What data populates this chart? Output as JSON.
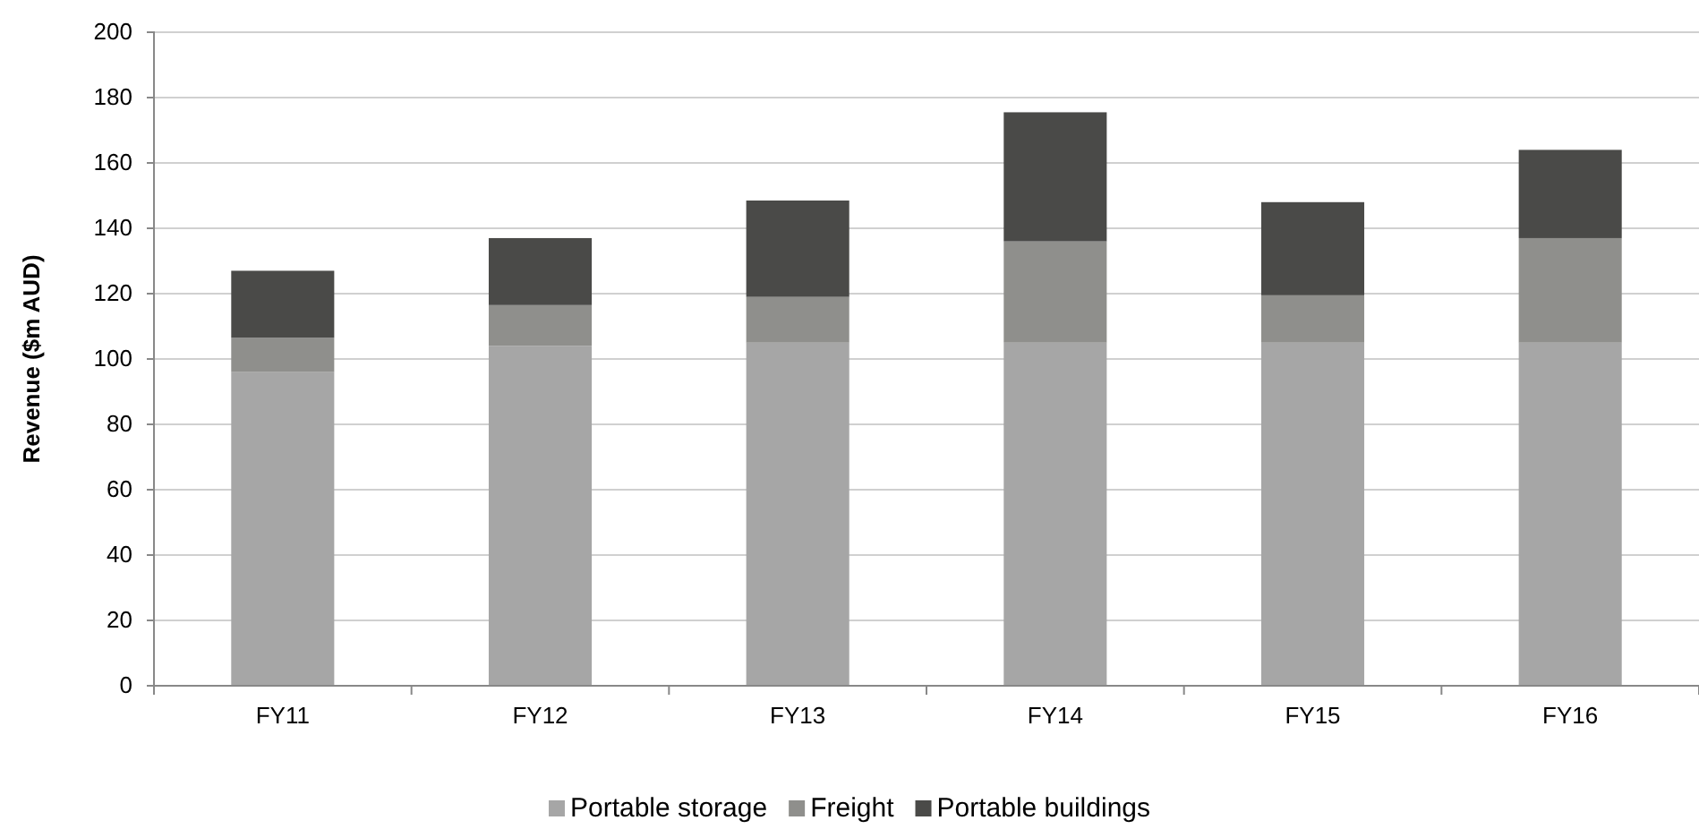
{
  "chart_data": {
    "type": "bar",
    "stacked": true,
    "ylabel": "Revenue ($m AUD)",
    "categories": [
      "FY11",
      "FY12",
      "FY13",
      "FY14",
      "FY15",
      "FY16"
    ],
    "series": [
      {
        "name": "Portable storage",
        "color": "#a6a6a6",
        "values": [
          96,
          104,
          105,
          105,
          105,
          105
        ]
      },
      {
        "name": "Freight",
        "color": "#8f8f8c",
        "values": [
          10.5,
          12.5,
          14,
          31,
          14.5,
          32
        ]
      },
      {
        "name": "Portable buildings",
        "color": "#4a4a48",
        "values": [
          20.5,
          20.5,
          29.5,
          39.5,
          28.5,
          27
        ]
      }
    ],
    "ylim": [
      0,
      200
    ],
    "yticks": [
      0,
      20,
      40,
      60,
      80,
      100,
      120,
      140,
      160,
      180,
      200
    ],
    "grid": "y",
    "legend": "bottom"
  }
}
